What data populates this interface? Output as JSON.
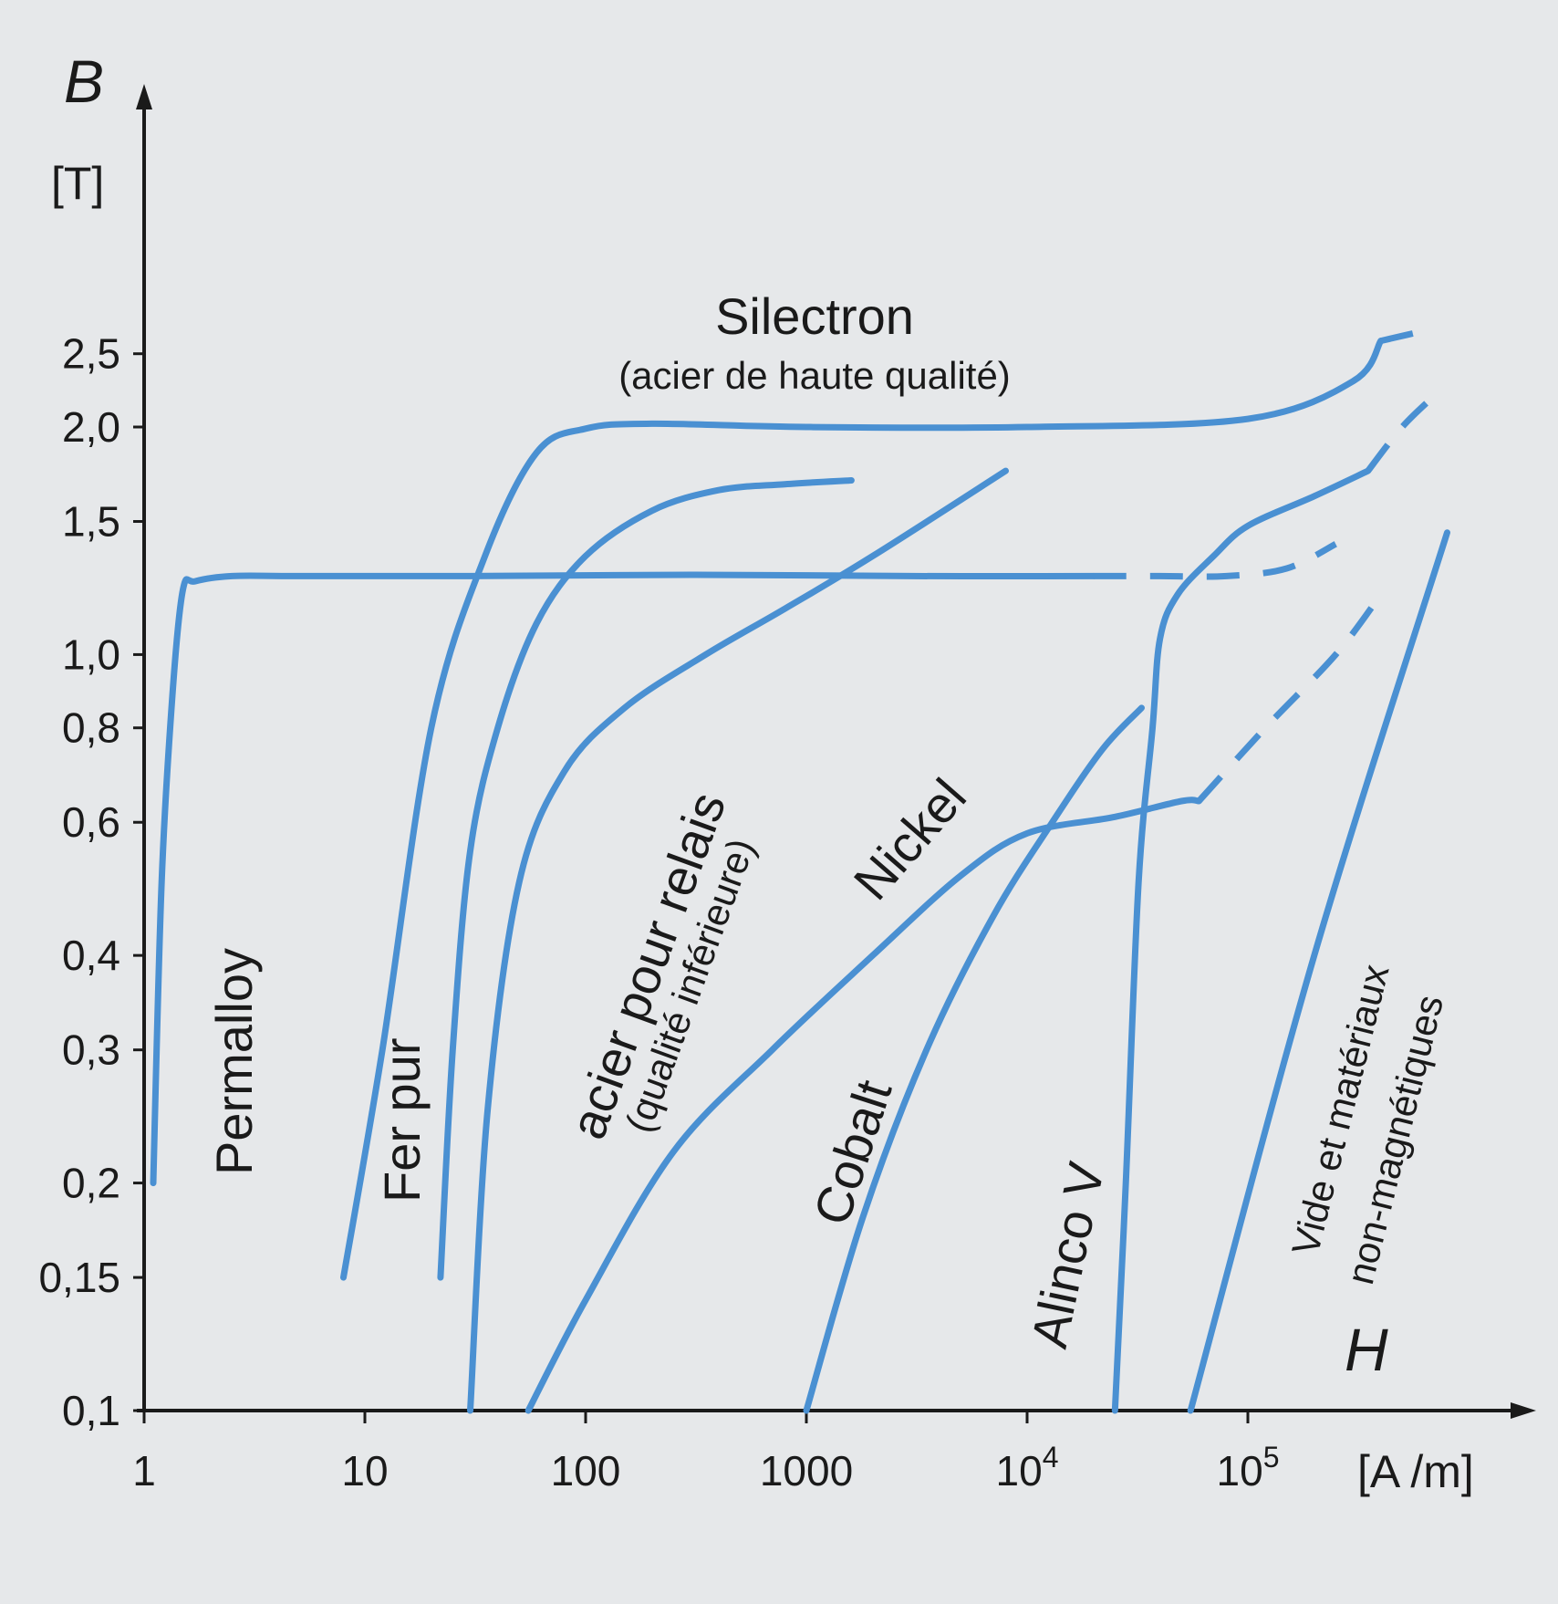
{
  "chart_data": {
    "type": "line",
    "title": "",
    "xlabel": "H",
    "ylabel": "B",
    "x_unit": "[A /m]",
    "y_unit": "[T]",
    "x_scale": "log",
    "y_scale": "log",
    "xlim": [
      1,
      1000000
    ],
    "ylim": [
      0.1,
      5
    ],
    "grid": false,
    "x_ticks": [
      {
        "value": 1,
        "label": "1"
      },
      {
        "value": 10,
        "label": "10"
      },
      {
        "value": 100,
        "label": "100"
      },
      {
        "value": 1000,
        "label": "1000"
      },
      {
        "value": 10000,
        "label": "10",
        "sup": "4"
      },
      {
        "value": 100000,
        "label": "10",
        "sup": "5"
      }
    ],
    "y_ticks": [
      {
        "value": 0.1,
        "label": "0,1"
      },
      {
        "value": 0.15,
        "label": "0,15"
      },
      {
        "value": 0.2,
        "label": "0,2"
      },
      {
        "value": 0.3,
        "label": "0,3"
      },
      {
        "value": 0.4,
        "label": "0,4"
      },
      {
        "value": 0.6,
        "label": "0,6"
      },
      {
        "value": 0.8,
        "label": "0,8"
      },
      {
        "value": 1.0,
        "label": "1,0"
      },
      {
        "value": 1.5,
        "label": "1,5"
      },
      {
        "value": 2.0,
        "label": "2,0"
      },
      {
        "value": 2.5,
        "label": "2,5"
      }
    ],
    "series": [
      {
        "name": "Permalloy",
        "sublabel": "",
        "color": "#4a90d2",
        "x": [
          1.1,
          1.2,
          1.35,
          1.5,
          1.7,
          2.5,
          5,
          30,
          300,
          3000,
          20000
        ],
        "y": [
          0.2,
          0.5,
          0.9,
          1.22,
          1.25,
          1.27,
          1.27,
          1.27,
          1.275,
          1.27,
          1.27
        ],
        "dashed_x": [
          20000,
          40000,
          80000,
          150000,
          250000
        ],
        "dashed_y": [
          1.27,
          1.27,
          1.27,
          1.3,
          1.4
        ]
      },
      {
        "name": "Silectron",
        "sublabel": "(acier de haute qualité)",
        "color": "#4a90d2",
        "x": [
          8,
          12,
          20,
          35,
          60,
          100,
          200,
          1000,
          10000,
          100000,
          300000,
          400000
        ],
        "y": [
          0.15,
          0.3,
          0.8,
          1.35,
          1.85,
          1.99,
          2.02,
          2.0,
          2.0,
          2.05,
          2.3,
          2.6
        ],
        "dashed_x": [
          400000,
          700000
        ],
        "dashed_y": [
          2.6,
          2.7
        ]
      },
      {
        "name": "Fer pur",
        "sublabel": "",
        "color": "#4a90d2",
        "x": [
          22,
          25,
          30,
          40,
          60,
          100,
          200,
          400,
          800,
          1600
        ],
        "y": [
          0.15,
          0.3,
          0.55,
          0.8,
          1.1,
          1.35,
          1.55,
          1.65,
          1.68,
          1.7
        ]
      },
      {
        "name": "acier pour relais",
        "sublabel": "(qualité inférieure)",
        "color": "#4a90d2",
        "x": [
          30,
          36,
          50,
          80,
          150,
          350,
          800,
          2000,
          8000
        ],
        "y": [
          0.1,
          0.25,
          0.5,
          0.7,
          0.85,
          1.0,
          1.15,
          1.35,
          1.75
        ]
      },
      {
        "name": "Nickel",
        "sublabel": "",
        "color": "#4a90d2",
        "x": [
          55,
          100,
          250,
          700,
          2000,
          5000,
          10000,
          25000,
          50000,
          60000
        ],
        "y": [
          0.1,
          0.14,
          0.22,
          0.3,
          0.4,
          0.51,
          0.58,
          0.61,
          0.64,
          0.64
        ],
        "dashed_x": [
          60000,
          120000,
          250000,
          400000
        ],
        "dashed_y": [
          0.64,
          0.8,
          1.0,
          1.2
        ]
      },
      {
        "name": "Cobalt",
        "sublabel": "",
        "color": "#4a90d2",
        "x": [
          1000,
          1800,
          3500,
          7000,
          13000,
          22000,
          33000
        ],
        "y": [
          0.1,
          0.18,
          0.3,
          0.45,
          0.6,
          0.75,
          0.85
        ]
      },
      {
        "name": "Alinco V",
        "sublabel": "",
        "color": "#4a90d2",
        "x": [
          25000,
          28000,
          32000,
          37000,
          40000,
          48000,
          70000,
          100000,
          200000,
          350000
        ],
        "y": [
          0.1,
          0.2,
          0.5,
          0.8,
          1.05,
          1.2,
          1.35,
          1.48,
          1.62,
          1.75
        ],
        "dashed_x": [
          350000,
          500000,
          700000
        ],
        "dashed_y": [
          1.75,
          2.0,
          2.2
        ]
      },
      {
        "name": "Vide et matériaux non-magnétiques",
        "sublabel": "",
        "color": "#4a90d2",
        "x": [
          55000,
          200000,
          800000
        ],
        "y": [
          0.1,
          0.4,
          1.45
        ]
      }
    ],
    "curve_labels": [
      {
        "text": "Permalloy"
      },
      {
        "text": "Fer pur"
      },
      {
        "text": "acier pour relais"
      },
      {
        "text": "(qualité inférieure)"
      },
      {
        "text": "Nickel"
      },
      {
        "text": "Cobalt"
      },
      {
        "text": "Alinco V"
      },
      {
        "text": "Vide et matériaux"
      },
      {
        "text": "non-magnétiques"
      },
      {
        "text": "Silectron"
      },
      {
        "text": "(acier de haute qualité)"
      }
    ]
  }
}
